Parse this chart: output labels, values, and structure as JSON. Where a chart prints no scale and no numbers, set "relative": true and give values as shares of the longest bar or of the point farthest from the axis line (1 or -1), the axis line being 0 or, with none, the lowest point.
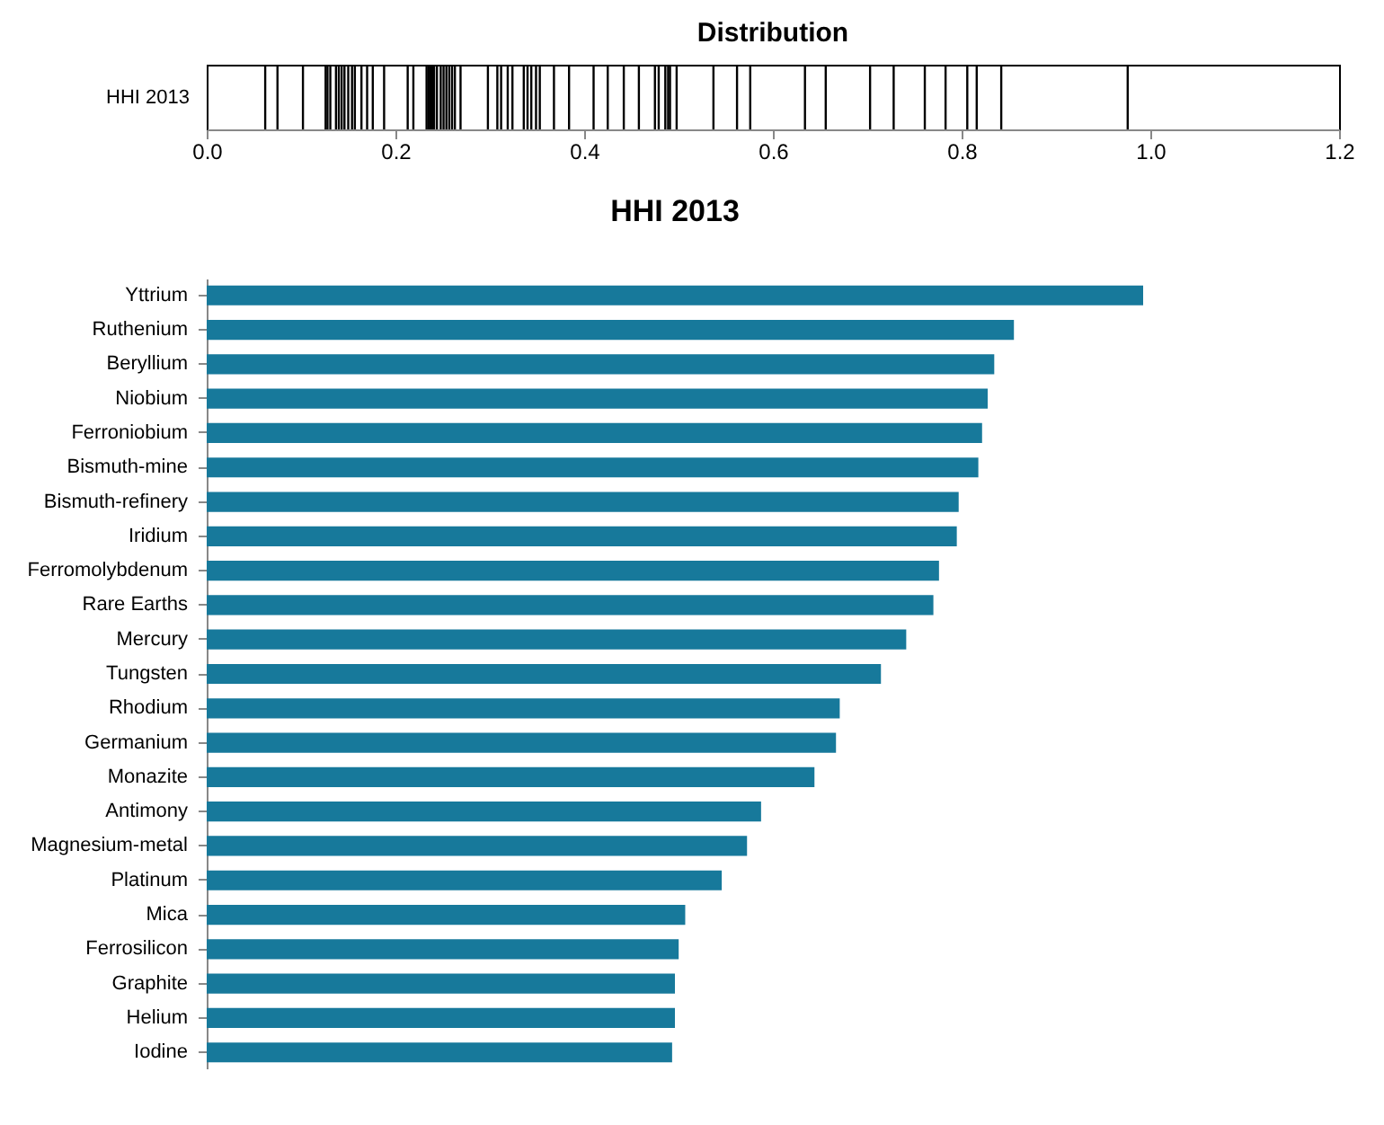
{
  "chart_data": [
    {
      "type": "bar",
      "title": "Distribution",
      "ylabel": "HHI 2013",
      "relative": true,
      "color": "#000000",
      "x": [
        0.062,
        0.075,
        0.102,
        0.126,
        0.128,
        0.131,
        0.137,
        0.14,
        0.143,
        0.146,
        0.15,
        0.154,
        0.157,
        0.164,
        0.17,
        0.176,
        0.188,
        0.213,
        0.219,
        0.233,
        0.235,
        0.237,
        0.239,
        0.241,
        0.244,
        0.248,
        0.251,
        0.254,
        0.257,
        0.26,
        0.263,
        0.269,
        0.298,
        0.308,
        0.312,
        0.319,
        0.324,
        0.336,
        0.34,
        0.344,
        0.349,
        0.353,
        0.368,
        0.384,
        0.41,
        0.425,
        0.442,
        0.458,
        0.475,
        0.479,
        0.486,
        0.489,
        0.491,
        0.498,
        0.537,
        0.562,
        0.576,
        0.634,
        0.656,
        0.703,
        0.728,
        0.761,
        0.783,
        0.806,
        0.816,
        0.842,
        0.976
      ],
      "values": [
        1,
        1,
        1,
        1,
        1,
        1,
        1,
        1,
        1,
        1,
        1,
        1,
        1,
        1,
        1,
        1,
        1,
        1,
        1,
        1,
        1,
        1,
        1,
        1,
        1,
        1,
        1,
        1,
        1,
        1,
        1,
        1,
        1,
        1,
        1,
        1,
        1,
        1,
        1,
        1,
        1,
        1,
        1,
        1,
        1,
        1,
        1,
        1,
        1,
        1,
        1,
        1,
        1,
        1,
        1,
        1,
        1,
        1,
        1,
        1,
        1,
        1,
        1,
        1,
        1,
        1,
        1
      ],
      "xlim": [
        0,
        1.2
      ],
      "xticks": [
        {
          "value": 0,
          "label": "0.0"
        },
        0.2,
        0.4,
        0.6,
        0.8,
        {
          "value": 1,
          "label": "1.0"
        },
        1.2
      ],
      "tick_labels": "x"
    },
    {
      "type": "bar",
      "orientation": "horizontal",
      "title": "HHI 2013",
      "relative": true,
      "color": "#17799b",
      "categories": [
        "Yttrium",
        "Ruthenium",
        "Beryllium",
        "Niobium",
        "Ferroniobium",
        "Bismuth-mine",
        "Bismuth-refinery",
        "Iridium",
        "Ferromolybdenum",
        "Rare Earths",
        "Mercury",
        "Tungsten",
        "Rhodium",
        "Germanium",
        "Monazite",
        "Antimony",
        "Magnesium-metal",
        "Platinum",
        "Mica",
        "Ferrosilicon",
        "Graphite",
        "Helium",
        "Iodine"
      ],
      "values": [
        1,
        0.862,
        0.841,
        0.834,
        0.828,
        0.824,
        0.803,
        0.801,
        0.782,
        0.776,
        0.747,
        0.72,
        0.676,
        0.672,
        0.649,
        0.592,
        0.577,
        0.55,
        0.511,
        0.504,
        0.5,
        0.5,
        0.497
      ],
      "tick_labels": "y"
    }
  ]
}
